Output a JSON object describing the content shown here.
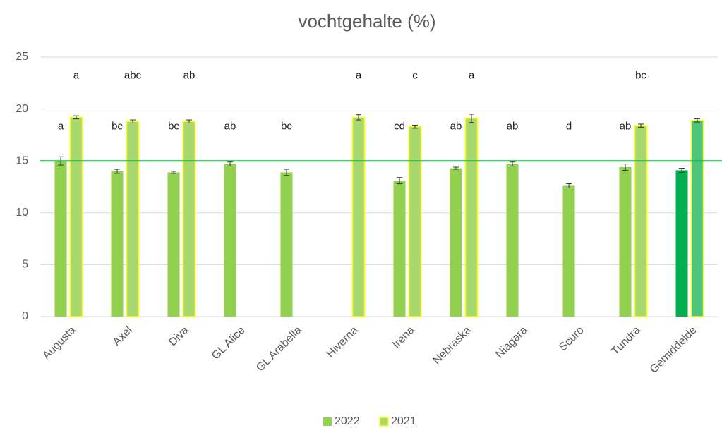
{
  "chart_data": {
    "type": "bar",
    "title": "vochtgehalte (%)",
    "categories": [
      "Augusta",
      "Axel",
      "Diva",
      "GL Alice",
      "GL Arabella",
      "Hiverna",
      "Irena",
      "Nebraska",
      "Niagara",
      "Scuro",
      "Tundra",
      "Gemiddelde"
    ],
    "series": [
      {
        "name": "2022",
        "color": "#92d050",
        "colors": [
          "#92d050",
          "#92d050",
          "#92d050",
          "#92d050",
          "#92d050",
          "#92d050",
          "#92d050",
          "#92d050",
          "#92d050",
          "#92d050",
          "#92d050",
          "#00b050"
        ],
        "values": [
          15.0,
          14.0,
          13.9,
          14.7,
          13.9,
          null,
          13.1,
          14.3,
          14.7,
          12.6,
          14.4,
          14.1
        ],
        "errors": [
          0.4,
          0.2,
          0.1,
          0.2,
          0.3,
          null,
          0.3,
          0.1,
          0.2,
          0.2,
          0.3,
          0.2
        ],
        "letters": [
          "a",
          "bc",
          "bc",
          "ab",
          "bc",
          null,
          "cd",
          "ab",
          "ab",
          "d",
          "ab",
          null
        ]
      },
      {
        "name": "2021",
        "color": "#a9d86e",
        "edge_color": "#ffff00",
        "colors": [
          "#a9d86e",
          "#a9d86e",
          "#a9d86e",
          "#a9d86e",
          "#a9d86e",
          "#a9d86e",
          "#a9d86e",
          "#a9d86e",
          "#a9d86e",
          "#a9d86e",
          "#a9d86e",
          "#4cc47e"
        ],
        "values": [
          19.2,
          18.8,
          18.8,
          null,
          null,
          19.2,
          18.3,
          19.1,
          null,
          null,
          18.4,
          18.9
        ],
        "errors": [
          0.15,
          0.15,
          0.15,
          null,
          null,
          0.25,
          0.15,
          0.4,
          null,
          null,
          0.15,
          0.15
        ],
        "letters": [
          "a",
          "abc",
          "ab",
          null,
          null,
          "a",
          "c",
          "a",
          null,
          null,
          "bc",
          null
        ]
      }
    ],
    "reference_line": {
      "value": 15,
      "color": "#22b14c"
    },
    "ylim": [
      0,
      25
    ],
    "yticks": [
      0,
      5,
      10,
      15,
      20,
      25
    ],
    "grid": true,
    "legend": "bottom"
  }
}
